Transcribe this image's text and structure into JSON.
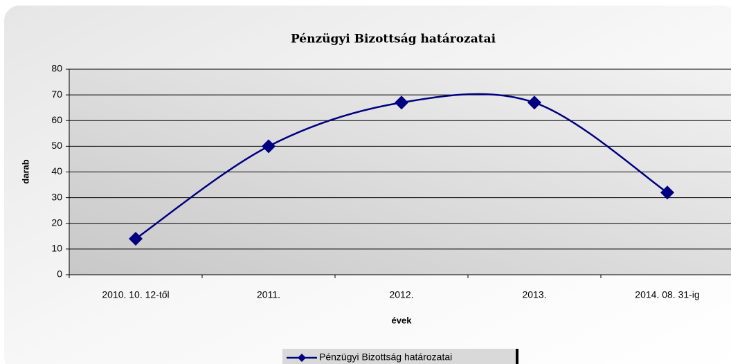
{
  "chart_data": {
    "type": "line",
    "title": "Pénzügyi Bizottság határozatai",
    "x_label": "évek",
    "y_label": "darab",
    "categories": [
      "2010. 10. 12-től",
      "2011.",
      "2012.",
      "2013.",
      "2014. 08. 31-ig"
    ],
    "series": [
      {
        "name": "Pénzügyi Bizottság határozatai",
        "color": "#000080",
        "values": [
          14,
          50,
          67,
          67,
          32
        ]
      }
    ],
    "ylim": [
      0,
      80
    ],
    "yticks": [
      0,
      10,
      20,
      30,
      40,
      50,
      60,
      70,
      80
    ],
    "grid": true,
    "smooth": true,
    "legend": "bottom"
  }
}
